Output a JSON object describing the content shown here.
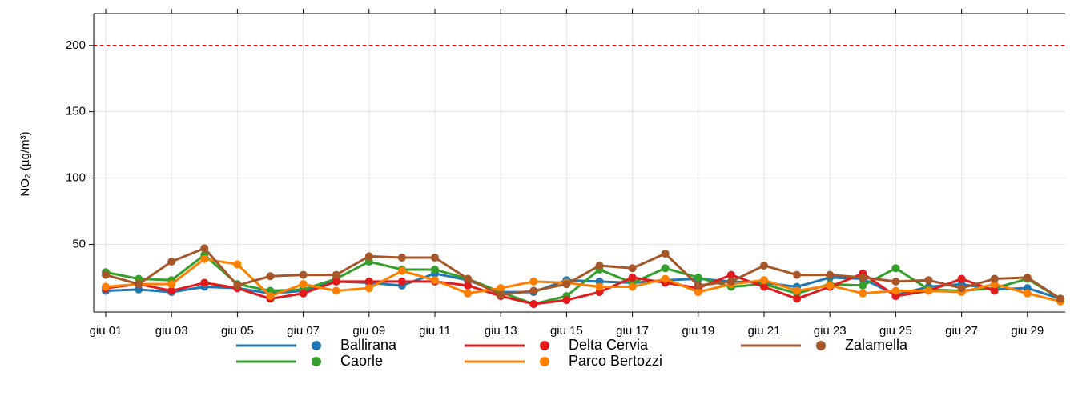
{
  "chart_data": {
    "type": "line",
    "y_label": "NO₂ (µg/m³)",
    "categories": [
      "giu 01",
      null,
      "giu 03",
      null,
      "giu 05",
      null,
      "giu 07",
      null,
      "giu 09",
      null,
      "giu 11",
      null,
      "giu 13",
      null,
      "giu 15",
      null,
      "giu 17",
      null,
      "giu 19",
      null,
      "giu 21",
      null,
      "giu 23",
      null,
      "giu 25",
      null,
      "giu 27",
      null,
      "giu 29",
      null
    ],
    "series": [
      {
        "name": "Ballirana",
        "color": "#1f78b4",
        "values": [
          15,
          16,
          14,
          18,
          17,
          13,
          15,
          22,
          21,
          19,
          28,
          23,
          14,
          14,
          23,
          22,
          21,
          23,
          24,
          22,
          21,
          18,
          25,
          24,
          12,
          18,
          20,
          16,
          17,
          9
        ]
      },
      {
        "name": "Caorle",
        "color": "#33a02c",
        "values": [
          29,
          24,
          23,
          42,
          20,
          15,
          16,
          24,
          37,
          31,
          31,
          24,
          14,
          5,
          11,
          31,
          21,
          32,
          25,
          18,
          20,
          13,
          20,
          19,
          32,
          16,
          15,
          17,
          24,
          9
        ]
      },
      {
        "name": "Delta Cervia",
        "color": "#e31a1c",
        "values": [
          17,
          20,
          15,
          21,
          17,
          9,
          13,
          22,
          22,
          22,
          22,
          19,
          11,
          5,
          8,
          14,
          25,
          21,
          17,
          27,
          18,
          9,
          18,
          28,
          11,
          15,
          24,
          15,
          null,
          null
        ]
      },
      {
        "name": "Parco Bertozzi",
        "color": "#ff7f00",
        "values": [
          18,
          20,
          20,
          39,
          35,
          11,
          20,
          15,
          17,
          30,
          23,
          13,
          17,
          22,
          21,
          18,
          18,
          24,
          14,
          20,
          23,
          15,
          19,
          13,
          15,
          15,
          14,
          20,
          13,
          7
        ]
      },
      {
        "name": "Zalamella",
        "color": "#a65628",
        "values": [
          27,
          20,
          37,
          47,
          19,
          26,
          27,
          27,
          41,
          40,
          40,
          24,
          12,
          15,
          20,
          34,
          32,
          43,
          19,
          22,
          34,
          27,
          27,
          25,
          22,
          23,
          17,
          24,
          25,
          9
        ]
      }
    ],
    "ylim": [
      -1,
      224
    ],
    "yticks": [
      50,
      100,
      150,
      200
    ],
    "grid": true,
    "hline": {
      "value": 200,
      "color": "#ff0000"
    },
    "legend": "bottom"
  }
}
